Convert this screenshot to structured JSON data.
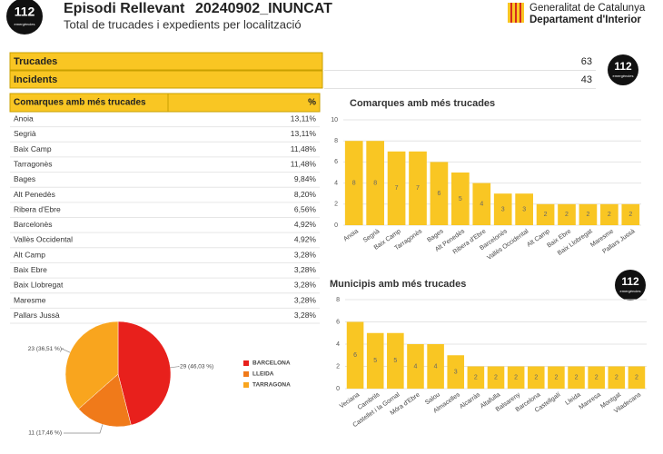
{
  "header": {
    "logo": {
      "number": "112",
      "caption": "emergències"
    },
    "title": "Episodi Rellevant",
    "code": "20240902_INUNCAT",
    "subtitle": "Total de trucades i expedients per localització",
    "org": "Generalitat de Catalunya",
    "dept": "Departament d'Interior"
  },
  "summary": {
    "rows": [
      [
        "Trucades",
        "63"
      ],
      [
        "Incidents",
        "43"
      ]
    ]
  },
  "table": {
    "header": [
      "Comarques amb més trucades",
      "%"
    ],
    "rows": [
      [
        "Anoia",
        "13,11%"
      ],
      [
        "Segrià",
        "13,11%"
      ],
      [
        "Baix Camp",
        "11,48%"
      ],
      [
        "Tarragonès",
        "11,48%"
      ],
      [
        "Bages",
        "9,84%"
      ],
      [
        "Alt Penedès",
        "8,20%"
      ],
      [
        "Ribera d'Ebre",
        "6,56%"
      ],
      [
        "Barcelonès",
        "4,92%"
      ],
      [
        "Vallès Occidental",
        "4,92%"
      ],
      [
        "Alt Camp",
        "3,28%"
      ],
      [
        "Baix Ebre",
        "3,28%"
      ],
      [
        "Baix Llobregat",
        "3,28%"
      ],
      [
        "Maresme",
        "3,28%"
      ],
      [
        "Pallars Jussà",
        "3,28%"
      ]
    ]
  },
  "chart_data": [
    {
      "type": "bar",
      "title": "Comarques amb més trucades",
      "categories": [
        "Anoia",
        "Segrià",
        "Baix Camp",
        "Tarragonès",
        "Bages",
        "Alt Penedès",
        "Ribera d'Ebre",
        "Barcelonès",
        "Vallès Occidental",
        "Alt Camp",
        "Baix Ebre",
        "Baix Llobregat",
        "Maresme",
        "Pallars Jussà"
      ],
      "values": [
        8,
        8,
        7,
        7,
        6,
        5,
        4,
        3,
        3,
        2,
        2,
        2,
        2,
        2
      ],
      "color": "#f9c623",
      "ylim": [
        0,
        10
      ],
      "yticks": [
        0,
        2,
        4,
        6,
        8,
        10
      ],
      "grid": true
    },
    {
      "type": "bar",
      "title": "Municipis amb més trucades",
      "categories": [
        "Veciana",
        "Cambrils",
        "Castellet i la Gornal",
        "Móra d'Ebre",
        "Salou",
        "Almacelles",
        "Alcarràs",
        "Altafulla",
        "Balsareny",
        "Barcelona",
        "Castellgalí",
        "Lleida",
        "Manresa",
        "Montgat",
        "Viladecans"
      ],
      "values": [
        6,
        5,
        5,
        4,
        4,
        3,
        2,
        2,
        2,
        2,
        2,
        2,
        2,
        2,
        2
      ],
      "color": "#f9c623",
      "ylim": [
        0,
        8
      ],
      "yticks": [
        0,
        2,
        4,
        6,
        8
      ],
      "grid": true
    },
    {
      "type": "pie",
      "categories": [
        "BARCELONA",
        "LLEIDA",
        "TARRAGONA"
      ],
      "values": [
        29,
        11,
        23
      ],
      "value_labels": [
        "29 (46,03 %)",
        "11 (17,46 %)",
        "23 (36,51 %)"
      ],
      "colors": [
        "#e8201c",
        "#f07a1a",
        "#f9a51e"
      ]
    }
  ]
}
